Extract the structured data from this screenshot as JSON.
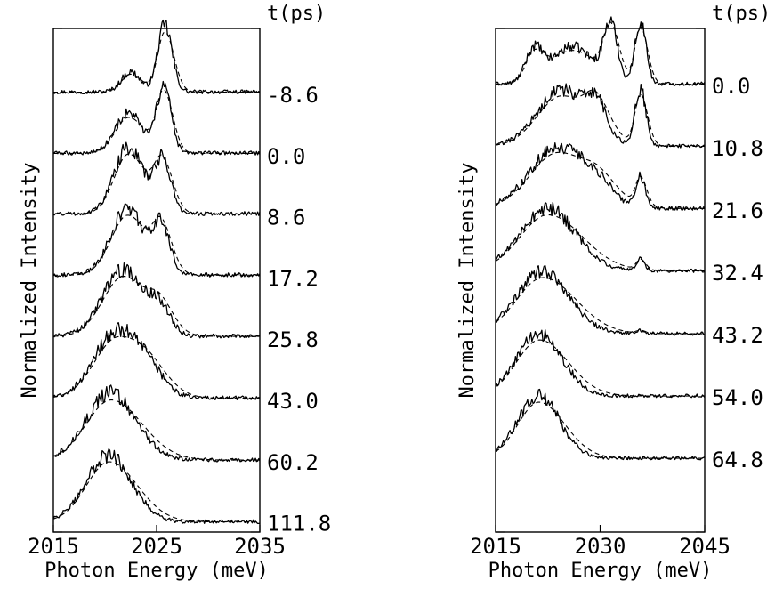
{
  "chart_data": [
    {
      "type": "line",
      "panel": "left",
      "xlabel": "Photon Energy (meV)",
      "ylabel": "Normalized Intensity",
      "legend_title": "t(ps)",
      "xlim": [
        2015,
        2035
      ],
      "x_ticks": [
        "2015",
        "2025",
        "2035"
      ],
      "traces": [
        {
          "label": "-8.6",
          "components": [
            {
              "center": 2022.5,
              "width": 0.9,
              "amp": 0.3
            },
            {
              "center": 2025.8,
              "width": 0.7,
              "amp": 1.0
            }
          ],
          "floor": 0.05
        },
        {
          "label": "0.0",
          "components": [
            {
              "center": 2022.3,
              "width": 1.3,
              "amp": 0.6
            },
            {
              "center": 2025.7,
              "width": 0.7,
              "amp": 1.0
            }
          ],
          "floor": 0.05
        },
        {
          "label": "8.6",
          "components": [
            {
              "center": 2022.3,
              "width": 1.4,
              "amp": 1.0
            },
            {
              "center": 2025.6,
              "width": 0.8,
              "amp": 0.8
            }
          ],
          "floor": 0.06
        },
        {
          "label": "17.2",
          "components": [
            {
              "center": 2022.2,
              "width": 1.6,
              "amp": 1.0
            },
            {
              "center": 2025.5,
              "width": 0.8,
              "amp": 0.7
            }
          ],
          "floor": 0.06
        },
        {
          "label": "25.8",
          "components": [
            {
              "center": 2021.8,
              "width": 2.0,
              "amp": 1.0
            },
            {
              "center": 2025.4,
              "width": 1.0,
              "amp": 0.35
            }
          ],
          "floor": 0.06
        },
        {
          "label": "43.0",
          "components": [
            {
              "center": 2021.2,
              "width": 2.2,
              "amp": 1.0
            },
            {
              "center": 2024.5,
              "width": 1.5,
              "amp": 0.25
            }
          ],
          "floor": 0.05
        },
        {
          "label": "60.2",
          "components": [
            {
              "center": 2020.6,
              "width": 2.4,
              "amp": 1.0
            }
          ],
          "floor": 0.04
        },
        {
          "label": "111.8",
          "components": [
            {
              "center": 2020.4,
              "width": 2.2,
              "amp": 1.0
            }
          ],
          "floor": 0.03
        }
      ]
    },
    {
      "type": "line",
      "panel": "right",
      "xlabel": "Photon Energy (meV)",
      "ylabel": "Normalized Intensity",
      "legend_title": "t(ps)",
      "xlim": [
        2015,
        2045
      ],
      "x_ticks": [
        "2015",
        "2030",
        "2045"
      ],
      "traces": [
        {
          "label": "0.0",
          "components": [
            {
              "center": 2020.5,
              "width": 1.2,
              "amp": 0.5
            },
            {
              "center": 2026.0,
              "width": 3.0,
              "amp": 0.6
            },
            {
              "center": 2031.5,
              "width": 1.0,
              "amp": 0.9
            },
            {
              "center": 2035.8,
              "width": 0.8,
              "amp": 1.0
            }
          ],
          "floor": 0.04
        },
        {
          "label": "10.8",
          "components": [
            {
              "center": 2024.5,
              "width": 3.5,
              "amp": 0.9
            },
            {
              "center": 2029.5,
              "width": 1.5,
              "amp": 0.5
            },
            {
              "center": 2035.8,
              "width": 0.8,
              "amp": 0.9
            }
          ],
          "floor": 0.04
        },
        {
          "label": "21.6",
          "components": [
            {
              "center": 2024.0,
              "width": 4.0,
              "amp": 1.0
            },
            {
              "center": 2030.0,
              "width": 2.0,
              "amp": 0.25
            },
            {
              "center": 2035.8,
              "width": 0.7,
              "amp": 0.5
            }
          ],
          "floor": 0.04
        },
        {
          "label": "32.4",
          "components": [
            {
              "center": 2022.5,
              "width": 4.0,
              "amp": 1.0
            },
            {
              "center": 2035.8,
              "width": 0.6,
              "amp": 0.18
            }
          ],
          "floor": 0.04
        },
        {
          "label": "43.2",
          "components": [
            {
              "center": 2021.8,
              "width": 3.8,
              "amp": 1.0
            },
            {
              "center": 2035.8,
              "width": 0.6,
              "amp": 0.05
            }
          ],
          "floor": 0.03
        },
        {
          "label": "54.0",
          "components": [
            {
              "center": 2021.3,
              "width": 3.3,
              "amp": 1.0
            }
          ],
          "floor": 0.03
        },
        {
          "label": "64.8",
          "components": [
            {
              "center": 2021.2,
              "width": 3.0,
              "amp": 1.0
            }
          ],
          "floor": 0.03
        }
      ]
    }
  ]
}
